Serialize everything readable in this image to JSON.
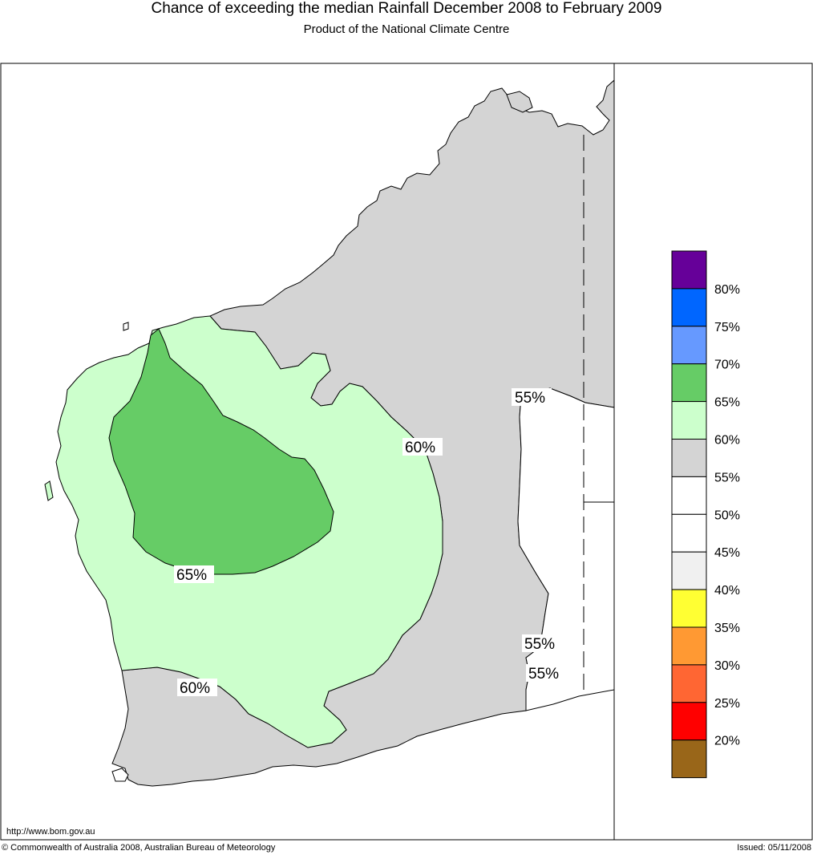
{
  "header": {
    "title": "Chance of exceeding the median Rainfall December 2008 to February 2009",
    "subtitle": "Product of the National Climate Centre"
  },
  "map": {
    "region": "Western Australia",
    "contour_labels": [
      "55%",
      "60%",
      "65%",
      "60%",
      "55%",
      "55%"
    ],
    "zones": [
      {
        "name": "50-55%",
        "color": "#ffffff"
      },
      {
        "name": "55-60%",
        "color": "#d4d4d4"
      },
      {
        "name": "60-65%",
        "color": "#ccffcc"
      },
      {
        "name": "65-70%",
        "color": "#66cc66"
      }
    ]
  },
  "legend": {
    "swatches": [
      {
        "color": "#660099"
      },
      {
        "color": "#0066ff"
      },
      {
        "color": "#6699ff"
      },
      {
        "color": "#66cc66"
      },
      {
        "color": "#ccffcc"
      },
      {
        "color": "#d4d4d4"
      },
      {
        "color": "#ffffff"
      },
      {
        "color": "#ffffff"
      },
      {
        "color": "#f0f0f0"
      },
      {
        "color": "#ffff33"
      },
      {
        "color": "#ff9933"
      },
      {
        "color": "#ff6633"
      },
      {
        "color": "#ff0000"
      },
      {
        "color": "#996619"
      }
    ],
    "labels": [
      "80%",
      "75%",
      "70%",
      "65%",
      "60%",
      "55%",
      "50%",
      "45%",
      "40%",
      "35%",
      "30%",
      "25%",
      "20%"
    ]
  },
  "footer": {
    "url": "http://www.bom.gov.au",
    "copyright": "© Commonwealth of Australia 2008, Australian Bureau of Meteorology",
    "issued": "Issued: 05/11/2008"
  }
}
